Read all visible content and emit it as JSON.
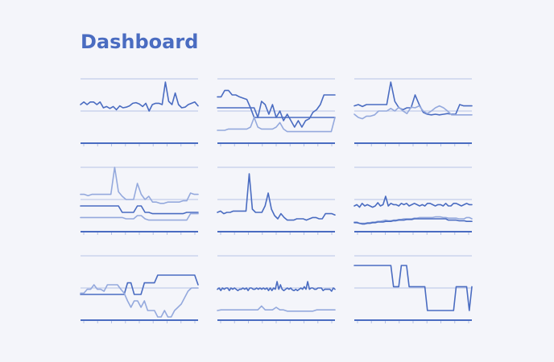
{
  "page": {
    "title": "Dashboard"
  },
  "colors": {
    "dark": "#4a6cc1",
    "light": "#94a9dd",
    "grid": "#b6c2e6",
    "axis": "#4a6cc1"
  },
  "chart_data": [
    {
      "type": "line",
      "title": "",
      "xlabel": "",
      "ylabel": "",
      "grid": true,
      "ylim": [
        0,
        100
      ],
      "series": [
        {
          "color": "dark",
          "values": [
            60,
            64,
            60,
            64,
            64,
            60,
            64,
            55,
            57,
            54,
            57,
            52,
            58,
            55,
            56,
            58,
            62,
            63,
            61,
            57,
            62,
            50,
            60,
            62,
            62,
            60,
            95,
            65,
            60,
            78,
            60,
            55,
            56,
            60,
            62,
            64,
            58
          ]
        }
      ]
    },
    {
      "type": "line",
      "title": "",
      "xlabel": "",
      "ylabel": "",
      "grid": true,
      "ylim": [
        0,
        100
      ],
      "series": [
        {
          "color": "dark",
          "values": [
            72,
            72,
            82,
            82,
            75,
            75,
            72,
            70,
            68,
            55,
            40,
            40,
            65,
            60,
            45,
            60,
            40,
            50,
            35,
            45,
            35,
            25,
            35,
            25,
            35,
            38,
            48,
            52,
            60,
            75,
            75,
            75,
            75
          ]
        },
        {
          "color": "dark",
          "values": [
            55,
            55,
            55,
            55,
            55,
            55,
            55,
            55,
            55,
            55,
            55,
            40,
            40,
            40,
            40,
            40,
            40,
            40,
            40,
            40,
            40,
            40,
            40,
            40,
            40,
            40,
            40,
            40,
            40,
            40,
            40,
            40,
            40
          ]
        },
        {
          "color": "light",
          "values": [
            20,
            20,
            20,
            22,
            22,
            22,
            22,
            22,
            22,
            25,
            40,
            25,
            22,
            22,
            22,
            22,
            25,
            32,
            22,
            18,
            18,
            18,
            18,
            18,
            18,
            18,
            18,
            18,
            18,
            18,
            18,
            18,
            40
          ]
        }
      ]
    },
    {
      "type": "line",
      "title": "",
      "xlabel": "",
      "ylabel": "",
      "grid": true,
      "ylim": [
        0,
        100
      ],
      "series": [
        {
          "color": "dark",
          "values": [
            58,
            60,
            57,
            60,
            60,
            60,
            60,
            60,
            60,
            95,
            65,
            55,
            52,
            55,
            55,
            75,
            60,
            48,
            45,
            44,
            45,
            44,
            45,
            46,
            45,
            45,
            60,
            58,
            58,
            58
          ]
        },
        {
          "color": "light",
          "values": [
            45,
            40,
            38,
            42,
            42,
            44,
            50,
            50,
            50,
            54,
            50,
            56,
            50,
            46,
            56,
            55,
            58,
            50,
            46,
            50,
            55,
            58,
            55,
            50,
            44,
            44,
            44,
            44,
            44,
            44
          ]
        }
      ]
    },
    {
      "type": "line",
      "title": "",
      "xlabel": "",
      "ylabel": "",
      "grid": true,
      "ylim": [
        0,
        100
      ],
      "series": [
        {
          "color": "light",
          "values": [
            58,
            58,
            56,
            58,
            58,
            58,
            58,
            58,
            58,
            100,
            62,
            55,
            50,
            50,
            50,
            75,
            58,
            50,
            55,
            46,
            46,
            44,
            44,
            46,
            46,
            46,
            46,
            48,
            48,
            60,
            58,
            58
          ]
        },
        {
          "color": "dark",
          "values": [
            40,
            40,
            40,
            40,
            40,
            40,
            40,
            40,
            40,
            40,
            40,
            30,
            30,
            30,
            30,
            40,
            40,
            30,
            30,
            28,
            28,
            28,
            28,
            28,
            28,
            28,
            28,
            28,
            30,
            30,
            30,
            30
          ]
        },
        {
          "color": "light",
          "values": [
            22,
            22,
            22,
            22,
            22,
            22,
            22,
            22,
            22,
            22,
            22,
            22,
            20,
            20,
            20,
            25,
            25,
            20,
            18,
            18,
            18,
            18,
            18,
            18,
            18,
            18,
            18,
            18,
            18,
            28,
            28,
            28
          ]
        }
      ]
    },
    {
      "type": "line",
      "title": "",
      "xlabel": "",
      "ylabel": "",
      "grid": true,
      "ylim": [
        0,
        100
      ],
      "series": [
        {
          "color": "dark",
          "values": [
            30,
            32,
            28,
            30,
            30,
            32,
            32,
            32,
            32,
            32,
            90,
            35,
            30,
            30,
            30,
            40,
            60,
            35,
            25,
            20,
            28,
            22,
            18,
            18,
            18,
            20,
            20,
            20,
            18,
            20,
            22,
            22,
            20,
            20,
            28,
            28,
            28,
            26
          ]
        }
      ]
    },
    {
      "type": "line",
      "title": "",
      "xlabel": "",
      "ylabel": "",
      "grid": true,
      "ylim": [
        0,
        100
      ],
      "series": [
        {
          "color": "dark",
          "values": [
            40,
            42,
            38,
            44,
            40,
            42,
            40,
            38,
            40,
            45,
            40,
            42,
            55,
            40,
            44,
            42,
            42,
            40,
            44,
            42,
            44,
            40,
            42,
            44,
            42,
            40,
            42,
            40,
            44,
            44,
            42,
            40,
            42,
            42,
            40,
            44,
            40,
            40,
            44,
            44,
            42,
            40,
            42,
            44,
            42,
            42
          ]
        },
        {
          "color": "light",
          "values": [
            15,
            15,
            13,
            13,
            13,
            14,
            14,
            15,
            15,
            16,
            16,
            17,
            18,
            17,
            17,
            18,
            18,
            19,
            19,
            20,
            20,
            20,
            20,
            21,
            21,
            22,
            22,
            22,
            22,
            22,
            22,
            23,
            23,
            23,
            22,
            22,
            21,
            21,
            21,
            21,
            20,
            20,
            20,
            22,
            22,
            20
          ]
        },
        {
          "color": "dark",
          "values": [
            14,
            14,
            13,
            12,
            12,
            13,
            13,
            14,
            14,
            15,
            15,
            15,
            16,
            16,
            16,
            17,
            17,
            18,
            18,
            18,
            19,
            19,
            19,
            20,
            20,
            20,
            20,
            20,
            20,
            20,
            20,
            20,
            20,
            20,
            20,
            20,
            18,
            18,
            18,
            18,
            17,
            17,
            17,
            16,
            16,
            16
          ]
        }
      ]
    },
    {
      "type": "line",
      "title": "",
      "xlabel": "",
      "ylabel": "",
      "grid": true,
      "ylim": [
        0,
        100
      ],
      "series": [
        {
          "color": "dark",
          "values": [
            40,
            40,
            40,
            40,
            40,
            40,
            40,
            40,
            40,
            40,
            40,
            40,
            40,
            40,
            58,
            58,
            40,
            40,
            40,
            58,
            58,
            58,
            58,
            70,
            70,
            70,
            70,
            70,
            70,
            70,
            70,
            70,
            70,
            70,
            70,
            55
          ]
        },
        {
          "color": "light",
          "values": [
            42,
            42,
            48,
            48,
            55,
            48,
            48,
            45,
            55,
            55,
            55,
            55,
            48,
            42,
            30,
            20,
            30,
            30,
            20,
            30,
            15,
            15,
            15,
            5,
            5,
            15,
            5,
            5,
            15,
            20,
            25,
            35,
            45,
            50,
            50,
            50
          ]
        }
      ]
    },
    {
      "type": "line",
      "title": "",
      "xlabel": "",
      "ylabel": "",
      "grid": true,
      "ylim": [
        0,
        100
      ],
      "series": [
        {
          "color": "dark",
          "values": [
            48,
            50,
            46,
            50,
            48,
            50,
            50,
            46,
            50,
            48,
            50,
            48,
            46,
            48,
            48,
            50,
            48,
            50,
            46,
            50,
            50,
            48,
            48,
            50,
            48,
            50,
            48,
            50,
            48,
            50,
            46,
            50,
            46,
            50,
            48,
            60,
            48,
            55,
            48,
            46,
            48,
            50,
            48,
            50,
            47,
            46,
            48,
            46,
            48,
            50,
            48,
            52,
            48,
            60,
            48,
            50,
            50,
            48,
            48,
            50,
            50,
            50,
            46,
            48,
            48,
            48,
            48,
            45,
            50,
            48
          ]
        },
        {
          "color": "light",
          "values": [
            15,
            16,
            16,
            16,
            16,
            16,
            16,
            16,
            16,
            16,
            16,
            16,
            22,
            16,
            16,
            16,
            20,
            16,
            16,
            14,
            14,
            14,
            14,
            14,
            14,
            14,
            14,
            16,
            16,
            16,
            16,
            16,
            16
          ]
        }
      ]
    },
    {
      "type": "line",
      "title": "",
      "xlabel": "",
      "ylabel": "",
      "grid": true,
      "ylim": [
        0,
        100
      ],
      "series": [
        {
          "color": "dark",
          "values": [
            85,
            85,
            85,
            85,
            85,
            85,
            85,
            85,
            85,
            85,
            85,
            85,
            85,
            85,
            85,
            52,
            52,
            52,
            85,
            85,
            85,
            52,
            52,
            52,
            52,
            52,
            52,
            52,
            15,
            15,
            15,
            15,
            15,
            15,
            15,
            15,
            15,
            15,
            15,
            52,
            52,
            52,
            52,
            52,
            15,
            52
          ]
        }
      ]
    }
  ]
}
